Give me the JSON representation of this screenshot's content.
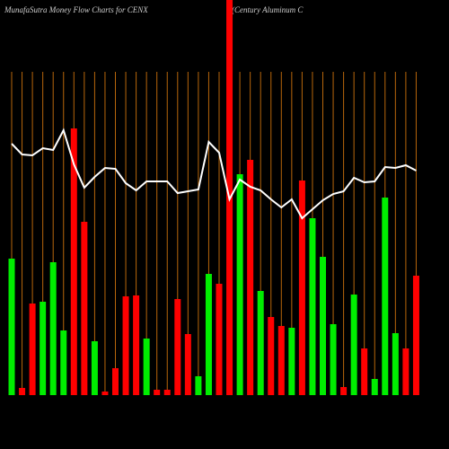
{
  "chart_data": {
    "type": "bar",
    "title": "MunafaSutra  Money Flow  Charts for CENX",
    "subtitle": "(Century Aluminum C",
    "categories": [
      null,
      null,
      null,
      null,
      null,
      null,
      null,
      null,
      null,
      null,
      null,
      null,
      null,
      null,
      null,
      null,
      null,
      null,
      null,
      null,
      null,
      null,
      null,
      null,
      null,
      null,
      null,
      null,
      null,
      null,
      null,
      null,
      null,
      null,
      null,
      null,
      null,
      null,
      null,
      null
    ],
    "ylim": [
      0,
      440
    ],
    "grid": true,
    "grid_color": "#b8660b",
    "series": [
      {
        "type": "bar",
        "values": [
          152,
          8,
          102,
          104,
          148,
          72,
          297,
          193,
          60,
          4,
          30,
          110,
          111,
          63,
          6,
          6,
          107,
          68,
          21,
          135,
          124,
          440,
          246,
          262,
          116,
          87,
          77,
          75,
          239,
          197,
          154,
          79,
          9,
          112,
          52,
          18,
          220,
          69,
          52,
          133
        ],
        "colors": [
          "#00ee00",
          "#ff0000",
          "#ff0000",
          "#00ee00",
          "#00ee00",
          "#00ee00",
          "#ff0000",
          "#ff0000",
          "#00ee00",
          "#ff0000",
          "#ff0000",
          "#ff0000",
          "#ff0000",
          "#00ee00",
          "#ff0000",
          "#ff0000",
          "#ff0000",
          "#ff0000",
          "#00ee00",
          "#00ee00",
          "#ff0000",
          "#ff0000",
          "#00ee00",
          "#ff0000",
          "#00ee00",
          "#ff0000",
          "#ff0000",
          "#00ee00",
          "#ff0000",
          "#00ee00",
          "#00ee00",
          "#00ee00",
          "#ff0000",
          "#00ee00",
          "#ff0000",
          "#00ee00",
          "#00ee00",
          "#00ee00",
          "#ff0000",
          "#ff0000"
        ]
      },
      {
        "type": "line",
        "color": "#ffffff",
        "values": [
          280,
          268,
          267,
          275,
          273,
          295,
          257,
          231,
          243,
          253,
          252,
          236,
          228,
          238,
          238,
          238,
          225,
          227,
          229,
          282,
          270,
          218,
          240,
          232,
          228,
          218,
          209,
          218,
          197,
          207,
          217,
          224,
          227,
          242,
          237,
          238,
          254,
          253,
          256,
          250
        ]
      }
    ]
  }
}
